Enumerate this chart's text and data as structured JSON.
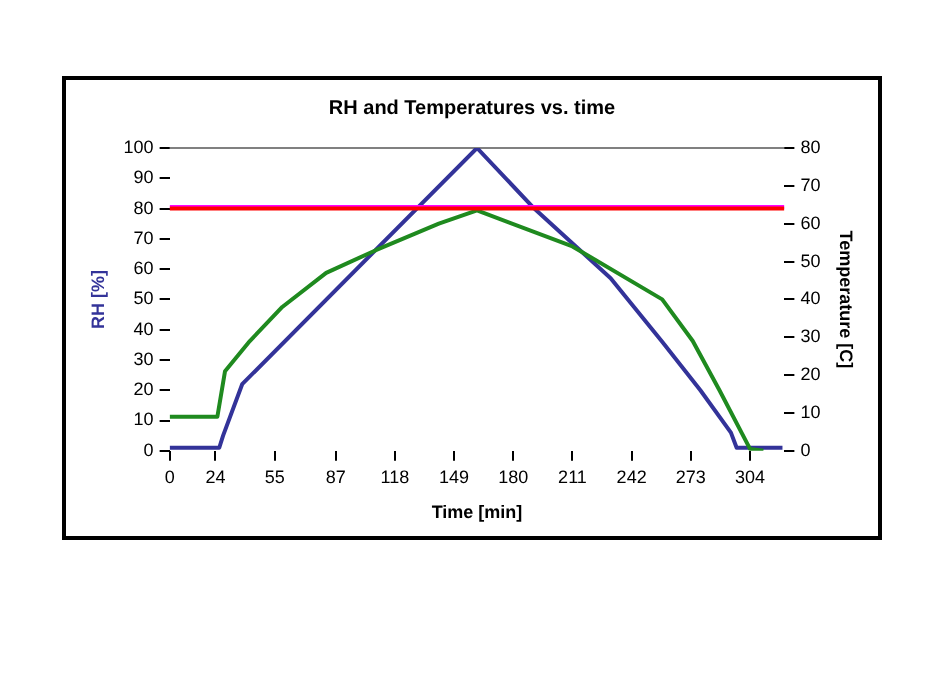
{
  "chart_data": {
    "type": "line",
    "title": "RH and Temperatures vs. time",
    "xlabel": "Time [min]",
    "ylabel": "RH [%]",
    "y2label": "Temperature [C]",
    "xlim": [
      0,
      322
    ],
    "xticks": [
      0,
      24,
      55,
      87,
      118,
      149,
      180,
      211,
      242,
      273,
      304
    ],
    "ylim": [
      0,
      100
    ],
    "yticks": [
      0,
      10,
      20,
      30,
      40,
      50,
      60,
      70,
      80,
      90,
      100
    ],
    "y2lim": [
      0,
      80
    ],
    "y2ticks": [
      0,
      10,
      20,
      30,
      40,
      50,
      60,
      70,
      80
    ],
    "grid": false,
    "legend": false,
    "marker": "none",
    "line_style": "solid",
    "ref_lines": [
      {
        "axis": "y",
        "value": 100,
        "color": "#808080"
      }
    ],
    "series": [
      {
        "color": "#ff0000",
        "x": [
          0,
          322
        ],
        "values": [
          80,
          80
        ]
      },
      {
        "color": "#ff00ff",
        "x": [
          0,
          60,
          120,
          180,
          240,
          300,
          322
        ],
        "values": [
          80.5,
          80.5,
          80.5,
          80.5,
          80.5,
          80.5,
          80.5
        ]
      },
      {
        "color": "#1f8a1f",
        "axis": "y2",
        "x": [
          0,
          25,
          29,
          42,
          59,
          82,
          108,
          141,
          161,
          211,
          258,
          274,
          288,
          304,
          311
        ],
        "values": [
          9,
          9,
          21,
          29,
          38,
          47,
          53,
          60,
          63.5,
          54,
          40,
          29,
          16,
          0.5,
          0
        ]
      },
      {
        "color": "#333399",
        "x": [
          0,
          26,
          28,
          38,
          161,
          191,
          231,
          258,
          278,
          294,
          297,
          321
        ],
        "values": [
          1,
          1,
          5,
          22,
          100,
          80,
          57,
          36,
          20,
          6,
          1,
          1
        ]
      }
    ]
  }
}
